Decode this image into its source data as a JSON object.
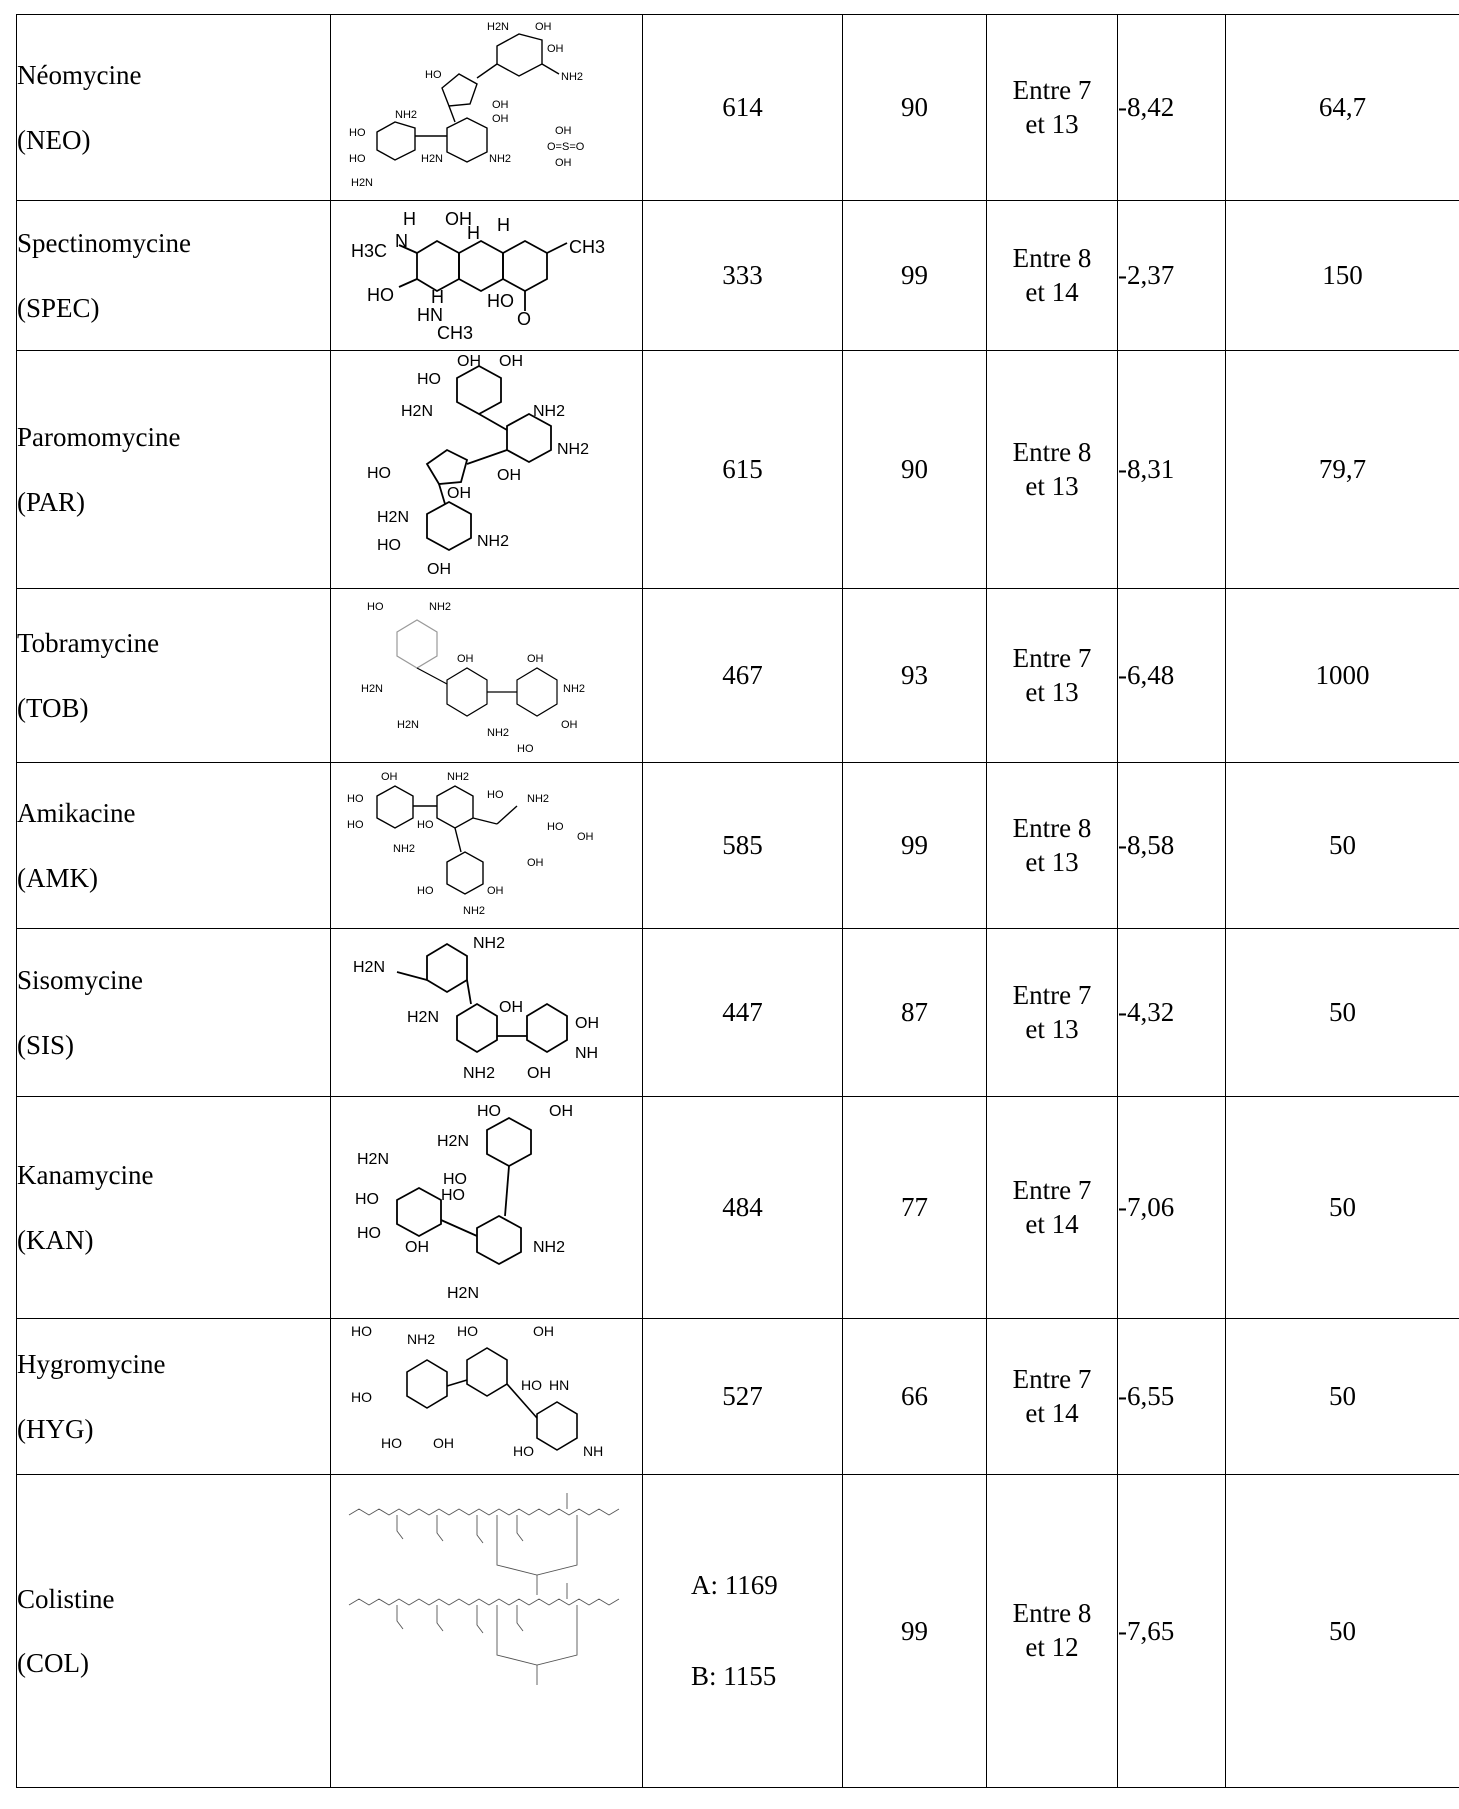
{
  "rows": [
    {
      "name": "Néomycine",
      "abbr": "(NEO)",
      "mw": [
        "614"
      ],
      "col3": "90",
      "ph": [
        "Entre 7",
        "et 13"
      ],
      "logp": "-8,42",
      "col6": "64,7",
      "structure_icon": "neomycin-structure"
    },
    {
      "name": "Spectinomycine",
      "abbr": "(SPEC)",
      "mw": [
        "333"
      ],
      "col3": "99",
      "ph": [
        "Entre 8",
        "et 14"
      ],
      "logp": "-2,37",
      "col6": "150",
      "structure_icon": "spectinomycin-structure"
    },
    {
      "name": "Paromomycine",
      "abbr": "(PAR)",
      "mw": [
        "615"
      ],
      "col3": "90",
      "ph": [
        "Entre 8",
        "et 13"
      ],
      "logp": "-8,31",
      "col6": "79,7",
      "structure_icon": "paromomycin-structure"
    },
    {
      "name": "Tobramycine",
      "abbr": "(TOB)",
      "mw": [
        "467"
      ],
      "col3": "93",
      "ph": [
        "Entre 7",
        "et 13"
      ],
      "logp": "-6,48",
      "col6": "1000",
      "structure_icon": "tobramycin-structure"
    },
    {
      "name": "Amikacine",
      "abbr": "(AMK)",
      "mw": [
        "585"
      ],
      "col3": "99",
      "ph": [
        "Entre 8",
        "et 13"
      ],
      "logp": "-8,58",
      "col6": "50",
      "structure_icon": "amikacin-structure"
    },
    {
      "name": "Sisomycine",
      "abbr": "(SIS)",
      "mw": [
        "447"
      ],
      "col3": "87",
      "ph": [
        "Entre 7",
        "et 13"
      ],
      "logp": "-4,32",
      "col6": "50",
      "structure_icon": "sisomicin-structure"
    },
    {
      "name": "Kanamycine",
      "abbr": "(KAN)",
      "mw": [
        "484"
      ],
      "col3": "77",
      "ph": [
        "Entre 7",
        "et 14"
      ],
      "logp": "-7,06",
      "col6": "50",
      "structure_icon": "kanamycin-structure"
    },
    {
      "name": "Hygromycine",
      "abbr": "(HYG)",
      "mw": [
        "527"
      ],
      "col3": "66",
      "ph": [
        "Entre 7",
        "et 14"
      ],
      "logp": "-6,55",
      "col6": "50",
      "structure_icon": "hygromycin-structure"
    },
    {
      "name": "Colistine",
      "abbr": "(COL)",
      "mw": [
        "A: 1169",
        "B: 1155"
      ],
      "col3": "99",
      "ph": [
        "Entre 8",
        "et 12"
      ],
      "logp": "-7,65",
      "col6": "50",
      "structure_icon": "colistin-structure"
    }
  ],
  "structure_labels": {
    "neomycin": [
      "H2N",
      "OH",
      "OH",
      "HO",
      "NH2",
      "NH2",
      "HO",
      "OH",
      "OH",
      "HO",
      "H2N",
      "NH2",
      "H2N",
      "OH",
      "O=S=O",
      "OH"
    ],
    "spectinomycin": [
      "H",
      "OH",
      "H",
      "H",
      "CH3",
      "H3C",
      "N",
      "HO",
      "H",
      "HN",
      "HO",
      "O",
      "CH3"
    ],
    "paromomycin": [
      "OH",
      "OH",
      "HO",
      "H2N",
      "NH2",
      "NH2",
      "HO",
      "OH",
      "OH",
      "H2N",
      "HO",
      "NH2",
      "OH"
    ],
    "tobramycin": [
      "HO",
      "NH2",
      "OH",
      "OH",
      "H2N",
      "NH2",
      "H2N",
      "NH2",
      "OH",
      "HO"
    ],
    "amikacin": [
      "OH",
      "NH2",
      "HO",
      "NH2",
      "HO",
      "HO",
      "HO",
      "NH2",
      "HO",
      "OH",
      "OH",
      "HO",
      "OH",
      "NH2"
    ],
    "sisomicin": [
      "NH2",
      "H2N",
      "H2N",
      "OH",
      "OH",
      "NH",
      "NH2",
      "OH"
    ],
    "kanamycin": [
      "HO",
      "OH",
      "H2N",
      "H2N",
      "HO",
      "HO",
      "HO",
      "HO",
      "OH",
      "NH2",
      "H2N"
    ],
    "hygromycin": [
      "HO",
      "NH2",
      "HO",
      "OH",
      "HO",
      "HN",
      "HO",
      "HO",
      "OH",
      "HO",
      "NH"
    ]
  }
}
